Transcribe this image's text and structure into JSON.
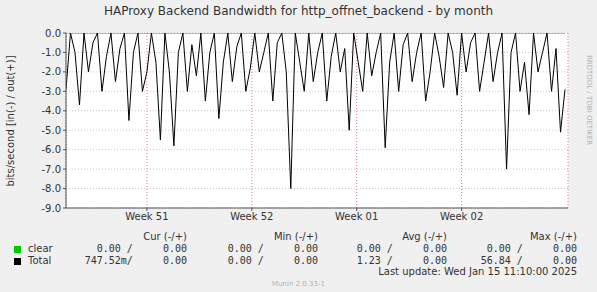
{
  "chart_data": {
    "type": "line",
    "title": "HAProxy Backend Bandwidth for http_offnet_backend - by month",
    "y_label": "bits/second [in(-) / out(+)]",
    "side_text": "RRDTOOL / TOBI OETIKER",
    "footer": "Munin 2.0.33-1",
    "last_update": "Last update: Wed Jan 15 11:10:00 2025",
    "grid": true,
    "xlim": [
      0,
      33.5
    ],
    "xticks": [
      {
        "value": 5.4,
        "label": "Week 51"
      },
      {
        "value": 12.4,
        "label": "Week 52"
      },
      {
        "value": 19.4,
        "label": "Week 01"
      },
      {
        "value": 26.4,
        "label": "Week 02"
      }
    ],
    "ylim": [
      -9,
      0
    ],
    "yticks": [
      {
        "value": -9,
        "label": "-9.0"
      },
      {
        "value": -8,
        "label": "-8.0"
      },
      {
        "value": -7,
        "label": "-7.0"
      },
      {
        "value": -6,
        "label": "-6.0"
      },
      {
        "value": -5,
        "label": "-5.0"
      },
      {
        "value": -4,
        "label": "-4.0"
      },
      {
        "value": -3,
        "label": "-3.0"
      },
      {
        "value": -2,
        "label": "-2.0"
      },
      {
        "value": -1,
        "label": "-1.0"
      },
      {
        "value": 0,
        "label": "0.0"
      }
    ],
    "x": [
      0,
      0.3,
      0.6,
      0.9,
      1.2,
      1.5,
      1.8,
      2.1,
      2.4,
      2.7,
      3,
      3.3,
      3.6,
      3.9,
      4.2,
      4.5,
      4.8,
      5.1,
      5.4,
      5.7,
      6,
      6.3,
      6.6,
      6.9,
      7.2,
      7.5,
      7.8,
      8.1,
      8.4,
      8.7,
      9,
      9.3,
      9.6,
      9.9,
      10.2,
      10.5,
      10.8,
      11.1,
      11.4,
      11.7,
      12,
      12.3,
      12.6,
      12.9,
      13.2,
      13.5,
      13.8,
      14.1,
      14.4,
      14.7,
      15,
      15.3,
      15.6,
      15.9,
      16.2,
      16.5,
      16.8,
      17.1,
      17.4,
      17.7,
      18,
      18.3,
      18.6,
      18.9,
      19.2,
      19.5,
      19.8,
      20.1,
      20.4,
      20.7,
      21,
      21.3,
      21.6,
      21.9,
      22.2,
      22.5,
      22.8,
      23.1,
      23.4,
      23.7,
      24,
      24.3,
      24.6,
      24.9,
      25.2,
      25.5,
      25.8,
      26.1,
      26.4,
      26.7,
      27,
      27.3,
      27.6,
      27.9,
      28.2,
      28.5,
      28.8,
      29.1,
      29.4,
      29.7,
      30,
      30.3,
      30.6,
      30.9,
      31.2,
      31.5,
      31.8,
      32.1,
      32.4,
      32.7,
      33,
      33.3
    ],
    "series": [
      {
        "name": "clear",
        "color": "#00cc00",
        "values": [
          0,
          0,
          0,
          0,
          0,
          0,
          0,
          0,
          0,
          0,
          0,
          0,
          0,
          0,
          0,
          0,
          0,
          0,
          0,
          0,
          0,
          0,
          0,
          0,
          0,
          0,
          0,
          0,
          0,
          0,
          0,
          0,
          0,
          0,
          0,
          0,
          0,
          0,
          0,
          0,
          0,
          0,
          0,
          0,
          0,
          0,
          0,
          0,
          0,
          0,
          0,
          0,
          0,
          0,
          0,
          0,
          0,
          0,
          0,
          0,
          0,
          0,
          0,
          0,
          0,
          0,
          0,
          0,
          0,
          0,
          0,
          0,
          0,
          0,
          0,
          0,
          0,
          0,
          0,
          0,
          0,
          0,
          0,
          0,
          0,
          0,
          0,
          0,
          0,
          0,
          0,
          0,
          0,
          0,
          0,
          0,
          0,
          0,
          0,
          0,
          0,
          0,
          0,
          0,
          0,
          0,
          0,
          0,
          0,
          0,
          0,
          0
        ]
      },
      {
        "name": "Total",
        "color": "#000000",
        "values": [
          -2.9,
          0,
          -1.0,
          -3.7,
          0,
          -2.0,
          -0.5,
          0,
          -3.0,
          -1.2,
          0,
          -2.5,
          -0.8,
          0,
          -4.5,
          -1.0,
          0,
          -3.0,
          -2.0,
          0,
          -1.5,
          -5.5,
          0,
          -2.0,
          -5.8,
          -1.0,
          0,
          -3.0,
          -0.6,
          -2.2,
          0,
          -3.5,
          -1.0,
          0,
          -4.4,
          -1.5,
          0,
          -2.5,
          -0.7,
          0,
          -3.0,
          -1.8,
          0,
          -2.0,
          -1.0,
          0,
          -3.5,
          -0.5,
          0,
          -2.0,
          -8.0,
          0,
          -1.5,
          -3.0,
          0,
          -2.5,
          -1.0,
          0,
          -3.5,
          -1.2,
          0,
          -2.0,
          -0.8,
          -5.0,
          0,
          -1.5,
          -3.0,
          0,
          -2.2,
          -1.0,
          0,
          -5.9,
          -1.5,
          0,
          -3.0,
          -0.6,
          0,
          -2.5,
          -1.0,
          0,
          -3.5,
          -2.0,
          0,
          -1.2,
          -2.8,
          0,
          -1.0,
          -3.2,
          0,
          -2.0,
          -0.5,
          0,
          -3.0,
          -1.5,
          0,
          -2.5,
          -1.0,
          0,
          -7.0,
          -1.0,
          0,
          -3.0,
          -1.5,
          -4.2,
          0,
          -2.0,
          -1.0,
          0,
          -3.0,
          -0.8,
          -5.1,
          -2.9
        ]
      }
    ],
    "legend_table": {
      "headers": [
        "Cur (-/+)",
        "Min (-/+)",
        "Avg (-/+)",
        "Max (-/+)"
      ],
      "rows": [
        {
          "name": "clear",
          "cells": [
            "0.00 /     0.00",
            "0.00 /     0.00",
            "0.00 /     0.00",
            "0.00 /     0.00"
          ]
        },
        {
          "name": "Total",
          "cells": [
            "747.52m/     0.00",
            "0.00 /     0.00",
            "1.23 /     0.00",
            "56.84 /     0.00"
          ]
        }
      ]
    }
  }
}
